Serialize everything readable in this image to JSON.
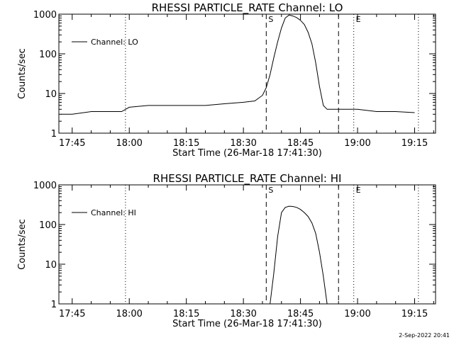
{
  "footer_text": "2-Sep-2022 20:41",
  "chart_data": [
    {
      "type": "line",
      "title": "RHESSI PARTICLE_RATE Channel: LO",
      "xlabel": "Start Time (26-Mar-18 17:41:30)",
      "ylabel": "Counts/sec",
      "yscale": "log",
      "xlim": [
        "17:41:30",
        "19:20:30"
      ],
      "ylim": [
        1,
        1000
      ],
      "xticks": [
        "17:45",
        "18:00",
        "18:15",
        "18:30",
        "18:45",
        "19:00",
        "19:15"
      ],
      "yticks": [
        "1",
        "10",
        "100",
        "1000"
      ],
      "legend": "top-left",
      "series": [
        {
          "name": "Channel: LO",
          "x": [
            "17:42",
            "17:45",
            "17:50",
            "17:55",
            "17:58",
            "18:00",
            "18:05",
            "18:10",
            "18:15",
            "18:20",
            "18:25",
            "18:30",
            "18:33",
            "18:35",
            "18:36",
            "18:37",
            "18:38",
            "18:39",
            "18:40",
            "18:41",
            "18:42",
            "18:43",
            "18:44",
            "18:45",
            "18:46",
            "18:47",
            "18:48",
            "18:49",
            "18:50",
            "18:51",
            "18:52",
            "18:53",
            "18:55",
            "19:00",
            "19:05",
            "19:10",
            "19:15"
          ],
          "values": [
            3,
            3,
            3.5,
            3.5,
            3.5,
            4.5,
            5,
            5,
            5,
            5,
            5.5,
            6,
            6.5,
            9,
            14,
            30,
            80,
            200,
            450,
            800,
            950,
            900,
            820,
            700,
            550,
            350,
            180,
            60,
            15,
            5,
            4,
            4,
            4,
            4,
            3.5,
            3.5,
            3.3
          ]
        }
      ],
      "vlines": [
        {
          "x": "17:59",
          "style": "dotted"
        },
        {
          "x": "18:36",
          "style": "dashed",
          "label": "S"
        },
        {
          "x": "18:55",
          "style": "dashed"
        },
        {
          "x": "18:59",
          "style": "dotted",
          "label": "E"
        },
        {
          "x": "19:16",
          "style": "dotted"
        }
      ]
    },
    {
      "type": "line",
      "title": "RHESSI PARTICLE_RATE Channel: HI",
      "xlabel": "Start Time (26-Mar-18 17:41:30)",
      "ylabel": "Counts/sec",
      "yscale": "log",
      "xlim": [
        "17:41:30",
        "19:20:30"
      ],
      "ylim": [
        1,
        1000
      ],
      "xticks": [
        "17:45",
        "18:00",
        "18:15",
        "18:30",
        "18:45",
        "19:00",
        "19:15"
      ],
      "yticks": [
        "1",
        "10",
        "100",
        "1000"
      ],
      "legend": "top-left",
      "series": [
        {
          "name": "Channel: HI",
          "x": [
            "18:37",
            "18:38",
            "18:39",
            "18:40",
            "18:41",
            "18:42",
            "18:43",
            "18:44",
            "18:45",
            "18:46",
            "18:47",
            "18:48",
            "18:49",
            "18:50",
            "18:51",
            "18:52"
          ],
          "values": [
            1,
            6,
            50,
            200,
            270,
            290,
            285,
            270,
            240,
            200,
            160,
            110,
            60,
            20,
            5,
            1
          ]
        }
      ],
      "vlines": [
        {
          "x": "17:59",
          "style": "dotted"
        },
        {
          "x": "18:36",
          "style": "dashed",
          "label": "S"
        },
        {
          "x": "18:55",
          "style": "dashed"
        },
        {
          "x": "18:59",
          "style": "dotted",
          "label": "E"
        },
        {
          "x": "19:16",
          "style": "dotted"
        }
      ]
    }
  ]
}
